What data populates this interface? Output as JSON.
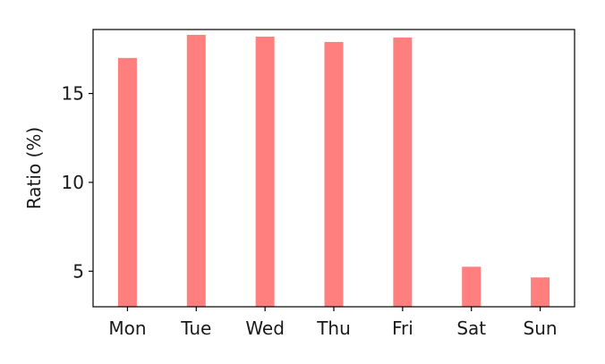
{
  "chart_data": {
    "type": "bar",
    "categories": [
      "Mon",
      "Tue",
      "Wed",
      "Thu",
      "Fri",
      "Sat",
      "Sun"
    ],
    "values": [
      17.0,
      18.3,
      18.2,
      17.9,
      18.15,
      5.25,
      4.65
    ],
    "title": "",
    "xlabel": "",
    "ylabel": "Ratio (%)",
    "ylim": [
      3,
      18.6
    ],
    "yticks": [
      5,
      10,
      15
    ],
    "grid": false,
    "bar_color": "#ff7f7f"
  }
}
